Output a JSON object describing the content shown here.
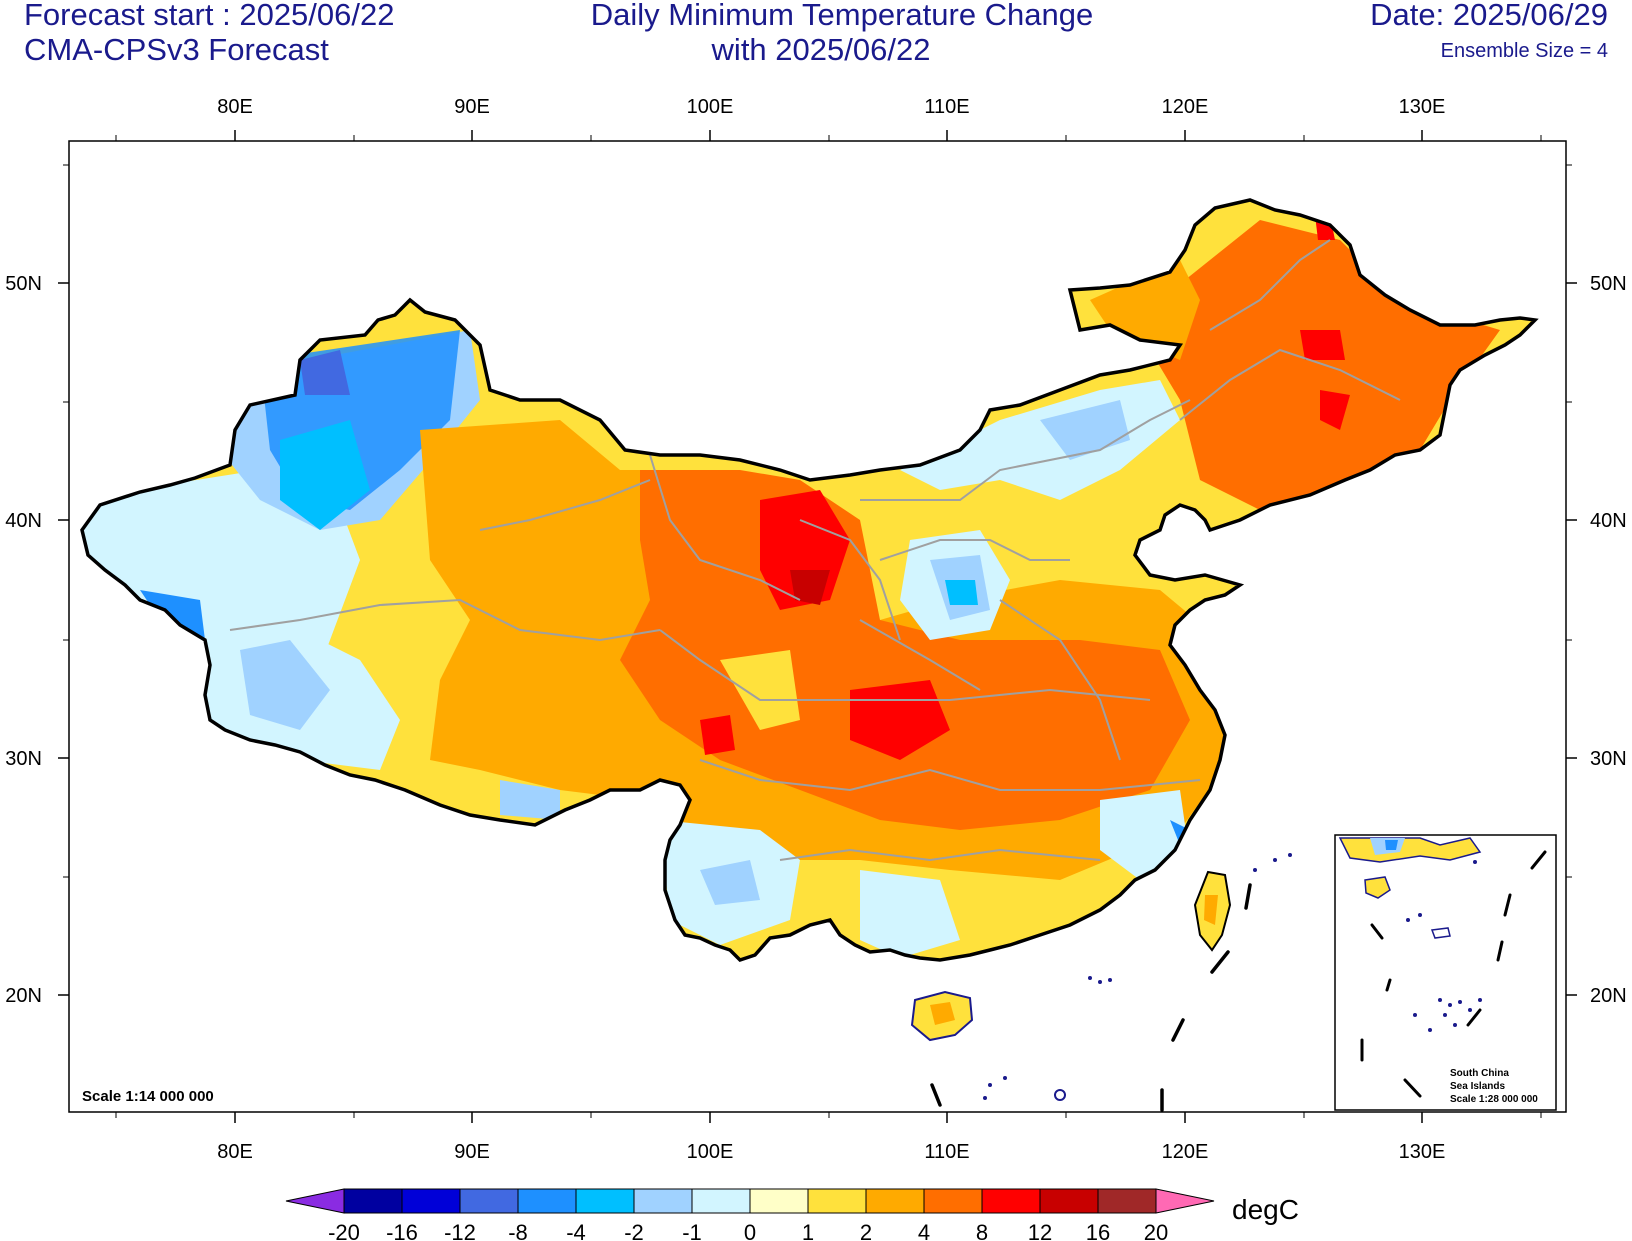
{
  "header": {
    "forecast_start": "Forecast start : 2025/06/22",
    "model": "CMA-CPSv3 Forecast",
    "title_line1": "Daily Minimum Temperature Change",
    "title_line2": "with 2025/06/22",
    "date": "Date: 2025/06/29",
    "ensemble": "Ensemble Size = 4"
  },
  "map": {
    "lon_labels": [
      "80E",
      "90E",
      "100E",
      "110E",
      "120E",
      "130E"
    ],
    "lat_labels": [
      "50N",
      "40N",
      "30N",
      "20N"
    ],
    "scale_text": "Scale 1:14 000 000",
    "inset": {
      "title_line1": "South China",
      "title_line2": "Sea Islands",
      "scale": "Scale 1:28 000 000"
    }
  },
  "colorbar": {
    "unit": "degC",
    "labels": [
      "-20",
      "-16",
      "-12",
      "-8",
      "-4",
      "-2",
      "-1",
      "0",
      "1",
      "2",
      "4",
      "8",
      "12",
      "16",
      "20"
    ],
    "colors": [
      "#0000a0",
      "#0000d8",
      "#4169e1",
      "#1e90ff",
      "#00bfff",
      "#a0d2ff",
      "#d2f5ff",
      "#ffffc8",
      "#ffe13c",
      "#ffaa00",
      "#ff6e00",
      "#ff0000",
      "#c80000",
      "#a02828"
    ],
    "low_color": "#8a2be2",
    "high_color": "#ff69b4"
  },
  "colors": {
    "text_dark_blue": "#1a1a8c",
    "border": "#000000",
    "province": "#a0a0a0",
    "coast": "#1a1a8c"
  }
}
